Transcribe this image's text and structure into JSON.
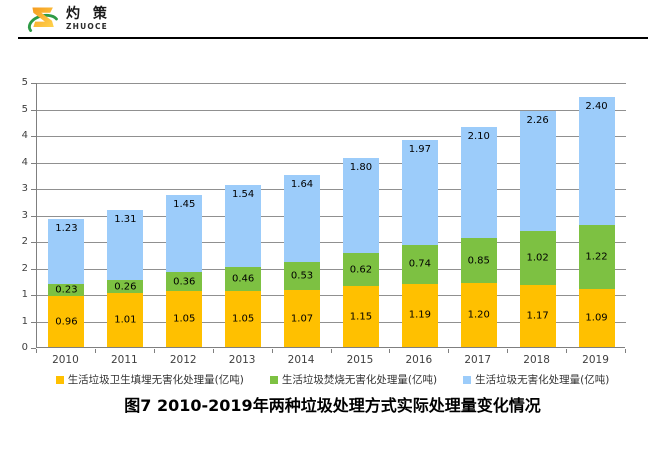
{
  "logo": {
    "icon": "zhuoce-z-swoosh-icon",
    "brand_cn": "灼 策",
    "brand_en": "ZHUOCE",
    "z_color": "#F59B1E",
    "z_color_light": "#FFD34D",
    "swoosh_color": "#2E9B46"
  },
  "chart_data": {
    "type": "bar",
    "stacked": true,
    "title": "图7  2010-2019年两种垃圾处理方式实际处理量变化情况",
    "categories": [
      "2010",
      "2011",
      "2012",
      "2013",
      "2014",
      "2015",
      "2016",
      "2017",
      "2018",
      "2019"
    ],
    "series": [
      {
        "name": "生活垃圾卫生填埋无害化处理量(亿吨)",
        "color": "#FFC000",
        "label_position": "middle",
        "values": [
          0.96,
          1.01,
          1.05,
          1.05,
          1.07,
          1.15,
          1.19,
          1.2,
          1.17,
          1.09
        ]
      },
      {
        "name": "生活垃圾焚烧无害化处理量(亿吨)",
        "color": "#7DC142",
        "label_position": "middle",
        "values": [
          0.23,
          0.26,
          0.36,
          0.46,
          0.53,
          0.62,
          0.74,
          0.85,
          1.02,
          1.22
        ]
      },
      {
        "name": "生活垃圾无害化处理量(亿吨)",
        "color": "#9CCCFA",
        "label_position": "top",
        "values": [
          1.23,
          1.31,
          1.45,
          1.54,
          1.64,
          1.8,
          1.97,
          2.1,
          2.26,
          2.4
        ]
      }
    ],
    "xlabel": "",
    "ylabel": "",
    "ylim": [
      0,
      5
    ],
    "y_tick_step": 0.5,
    "y_tick_labels_top_to_bottom": [
      "5",
      "5",
      "4",
      "4",
      "3",
      "3",
      "2",
      "2",
      "1",
      "1",
      "0"
    ],
    "grid": true,
    "gridline_color": "#909090",
    "axis_color": "#7f7f7f",
    "legend_position": "bottom",
    "value_label_decimals": 2
  }
}
